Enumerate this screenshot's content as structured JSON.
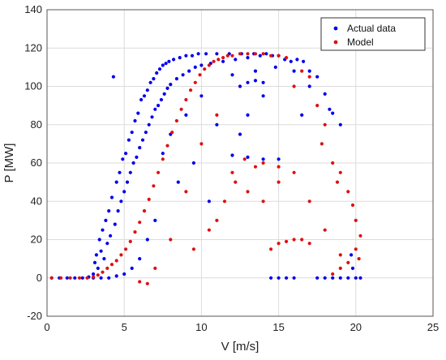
{
  "chart_data": {
    "type": "scatter",
    "xlabel": "V [m/s]",
    "ylabel": "P [MW]",
    "xlim": [
      0,
      25
    ],
    "ylim": [
      -20,
      140
    ],
    "xticks": [
      0,
      5,
      10,
      15,
      20,
      25
    ],
    "yticks": [
      -20,
      0,
      20,
      40,
      60,
      80,
      100,
      120,
      140
    ],
    "grid": true,
    "legend_position": "top-right",
    "series": [
      {
        "name": "Actual data",
        "color": "#0000ee",
        "points": [
          [
            0.3,
            0
          ],
          [
            0.8,
            0
          ],
          [
            1.3,
            0
          ],
          [
            1.8,
            0
          ],
          [
            2.3,
            0
          ],
          [
            2.7,
            0.5
          ],
          [
            3.0,
            2
          ],
          [
            3.1,
            8
          ],
          [
            3.2,
            12
          ],
          [
            3.3,
            5
          ],
          [
            3.4,
            20
          ],
          [
            3.5,
            14
          ],
          [
            3.6,
            25
          ],
          [
            3.7,
            10
          ],
          [
            3.8,
            30
          ],
          [
            3.9,
            18
          ],
          [
            4.0,
            35
          ],
          [
            4.1,
            22
          ],
          [
            4.2,
            42
          ],
          [
            4.3,
            105
          ],
          [
            4.4,
            28
          ],
          [
            4.5,
            50
          ],
          [
            4.6,
            35
          ],
          [
            4.7,
            55
          ],
          [
            4.8,
            40
          ],
          [
            4.9,
            62
          ],
          [
            5.0,
            45
          ],
          [
            5.1,
            65
          ],
          [
            5.2,
            50
          ],
          [
            5.3,
            72
          ],
          [
            5.4,
            55
          ],
          [
            5.5,
            76
          ],
          [
            5.6,
            60
          ],
          [
            5.7,
            82
          ],
          [
            5.8,
            63
          ],
          [
            5.9,
            86
          ],
          [
            6.0,
            68
          ],
          [
            6.1,
            93
          ],
          [
            6.2,
            72
          ],
          [
            6.3,
            95
          ],
          [
            6.4,
            76
          ],
          [
            6.5,
            98
          ],
          [
            6.6,
            80
          ],
          [
            6.7,
            102
          ],
          [
            6.8,
            84
          ],
          [
            6.9,
            104
          ],
          [
            7.0,
            88
          ],
          [
            7.1,
            107
          ],
          [
            7.2,
            90
          ],
          [
            7.3,
            109
          ],
          [
            7.4,
            93
          ],
          [
            7.5,
            111
          ],
          [
            7.6,
            96
          ],
          [
            7.7,
            112
          ],
          [
            7.8,
            99
          ],
          [
            7.9,
            113
          ],
          [
            8.0,
            101
          ],
          [
            8.2,
            114
          ],
          [
            8.4,
            104
          ],
          [
            8.6,
            115
          ],
          [
            8.8,
            106
          ],
          [
            9.0,
            116
          ],
          [
            9.2,
            108
          ],
          [
            9.4,
            116
          ],
          [
            9.6,
            110
          ],
          [
            9.8,
            117
          ],
          [
            10.0,
            111
          ],
          [
            10.3,
            117
          ],
          [
            10.6,
            112
          ],
          [
            11.0,
            117
          ],
          [
            11.4,
            113
          ],
          [
            11.8,
            117
          ],
          [
            12.2,
            114
          ],
          [
            12.6,
            117
          ],
          [
            13.0,
            115
          ],
          [
            13.4,
            117
          ],
          [
            13.8,
            116
          ],
          [
            14.2,
            117
          ],
          [
            14.6,
            116
          ],
          [
            15.0,
            116
          ],
          [
            15.4,
            114
          ],
          [
            15.8,
            113
          ],
          [
            16.2,
            114
          ],
          [
            16.6,
            113
          ],
          [
            12.5,
            100
          ],
          [
            13.0,
            102
          ],
          [
            13.5,
            103
          ],
          [
            14.0,
            102
          ],
          [
            12.0,
            64
          ],
          [
            13.0,
            63
          ],
          [
            14.0,
            62
          ],
          [
            15.0,
            62
          ],
          [
            16.5,
            85
          ],
          [
            17.0,
            108
          ],
          [
            17.5,
            105
          ],
          [
            18.0,
            96
          ],
          [
            18.5,
            86
          ],
          [
            19.0,
            80
          ],
          [
            14.5,
            0
          ],
          [
            15.0,
            0
          ],
          [
            15.5,
            0
          ],
          [
            16.0,
            0
          ],
          [
            17.5,
            0
          ],
          [
            18.0,
            0
          ],
          [
            18.5,
            0
          ],
          [
            19.0,
            0
          ],
          [
            19.5,
            0
          ],
          [
            20.0,
            0
          ],
          [
            20.3,
            0
          ],
          [
            19.8,
            5
          ],
          [
            19.7,
            12
          ],
          [
            7.0,
            30
          ],
          [
            6.5,
            20
          ],
          [
            6.0,
            10
          ],
          [
            5.5,
            5
          ],
          [
            5.0,
            2
          ],
          [
            4.5,
            1
          ],
          [
            4.0,
            0
          ],
          [
            3.5,
            0
          ],
          [
            3.0,
            0
          ],
          [
            10.5,
            40
          ],
          [
            11.0,
            80
          ],
          [
            9.5,
            60
          ],
          [
            8.5,
            50
          ],
          [
            10.0,
            95
          ],
          [
            9.0,
            85
          ],
          [
            8.0,
            75
          ],
          [
            7.5,
            65
          ],
          [
            12.0,
            106
          ],
          [
            13.5,
            108
          ],
          [
            14.8,
            110
          ],
          [
            16.0,
            108
          ],
          [
            17.0,
            100
          ],
          [
            18.3,
            88
          ],
          [
            12.5,
            75
          ],
          [
            13.0,
            85
          ],
          [
            14.0,
            95
          ]
        ]
      },
      {
        "name": "Model",
        "color": "#dd1111",
        "points": [
          [
            0.3,
            0
          ],
          [
            0.9,
            0
          ],
          [
            1.5,
            0
          ],
          [
            2.1,
            0
          ],
          [
            2.6,
            0
          ],
          [
            3.0,
            0.5
          ],
          [
            3.3,
            1.5
          ],
          [
            3.6,
            3
          ],
          [
            3.9,
            5
          ],
          [
            4.2,
            7
          ],
          [
            4.5,
            9
          ],
          [
            4.8,
            12
          ],
          [
            5.1,
            15
          ],
          [
            5.4,
            19
          ],
          [
            5.7,
            24
          ],
          [
            6.0,
            29
          ],
          [
            6.3,
            35
          ],
          [
            6.6,
            41
          ],
          [
            6.9,
            48
          ],
          [
            7.2,
            55
          ],
          [
            7.5,
            62
          ],
          [
            7.8,
            69
          ],
          [
            8.1,
            76
          ],
          [
            8.4,
            82
          ],
          [
            8.7,
            88
          ],
          [
            9.0,
            93
          ],
          [
            9.3,
            98
          ],
          [
            9.6,
            102
          ],
          [
            9.9,
            106
          ],
          [
            10.2,
            109
          ],
          [
            10.5,
            111
          ],
          [
            10.8,
            113
          ],
          [
            11.1,
            114
          ],
          [
            11.4,
            115
          ],
          [
            11.7,
            116
          ],
          [
            12.0,
            116
          ],
          [
            12.5,
            117
          ],
          [
            13.0,
            117
          ],
          [
            13.5,
            117
          ],
          [
            14.0,
            117
          ],
          [
            14.5,
            116
          ],
          [
            15.0,
            116
          ],
          [
            15.5,
            115
          ],
          [
            6.0,
            -2
          ],
          [
            6.5,
            -3
          ],
          [
            7.0,
            5
          ],
          [
            8.0,
            20
          ],
          [
            9.0,
            45
          ],
          [
            10.0,
            70
          ],
          [
            11.0,
            85
          ],
          [
            12.0,
            55
          ],
          [
            13.0,
            45
          ],
          [
            14.0,
            40
          ],
          [
            15.0,
            58
          ],
          [
            16.0,
            100
          ],
          [
            16.5,
            108
          ],
          [
            17.0,
            105
          ],
          [
            17.5,
            90
          ],
          [
            18.0,
            80
          ],
          [
            18.5,
            60
          ],
          [
            19.0,
            55
          ],
          [
            19.5,
            45
          ],
          [
            20.0,
            30
          ],
          [
            20.3,
            22
          ],
          [
            20.0,
            15
          ],
          [
            19.5,
            8
          ],
          [
            19.0,
            12
          ],
          [
            18.0,
            25
          ],
          [
            17.0,
            40
          ],
          [
            16.0,
            55
          ],
          [
            14.5,
            15
          ],
          [
            15.0,
            18
          ],
          [
            15.5,
            19
          ],
          [
            16.0,
            20
          ],
          [
            16.5,
            20
          ],
          [
            17.0,
            18
          ],
          [
            18.5,
            2
          ],
          [
            19.0,
            5
          ],
          [
            20.2,
            10
          ],
          [
            15.0,
            50
          ],
          [
            14.0,
            60
          ],
          [
            13.5,
            58
          ],
          [
            12.8,
            62
          ],
          [
            12.2,
            50
          ],
          [
            11.5,
            40
          ],
          [
            10.5,
            25
          ],
          [
            11.0,
            30
          ],
          [
            9.5,
            15
          ],
          [
            17.8,
            70
          ],
          [
            18.8,
            50
          ],
          [
            19.8,
            38
          ]
        ]
      }
    ]
  }
}
